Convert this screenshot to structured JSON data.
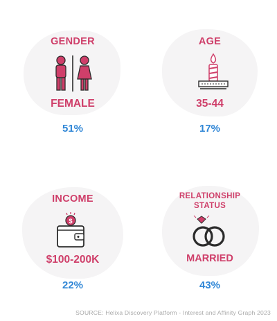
{
  "colors": {
    "accent": "#cf3f6a",
    "percent": "#2f86d6",
    "blob": "#f5f4f5",
    "icon_outline": "#2b2b2b",
    "icon_fill": "#cf3f6a"
  },
  "cards": {
    "gender": {
      "title": "GENDER",
      "value": "FEMALE",
      "percent": "51%",
      "icon": "gender-icon"
    },
    "age": {
      "title": "AGE",
      "value": "35-44",
      "percent": "17%",
      "icon": "birthday-candle-icon"
    },
    "income": {
      "title": "INCOME",
      "value": "$100-200K",
      "percent": "22%",
      "icon": "wallet-coin-icon"
    },
    "relationship": {
      "title_line1": "RELATIONSHIP",
      "title_line2": "STATUS",
      "value": "MARRIED",
      "percent": "43%",
      "icon": "wedding-rings-icon"
    }
  },
  "source": "SOURCE: Helixa Discovery Platform - Interest and Affinity Graph 2023"
}
